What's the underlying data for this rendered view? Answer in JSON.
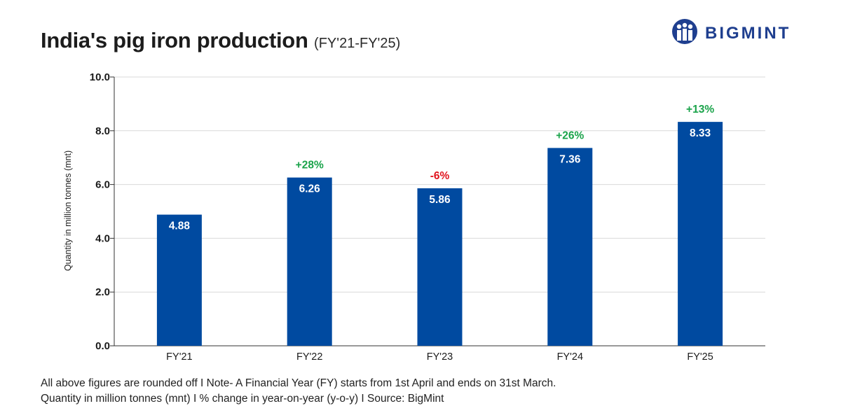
{
  "header": {
    "title": "India's pig iron production",
    "subtitle": "(FY'21-FY'25)"
  },
  "logo": {
    "text": "BIGMINT",
    "icon": "bigmint-logo-icon",
    "color": "#1f3f8f"
  },
  "chart_data": {
    "type": "bar",
    "categories": [
      "FY'21",
      "FY'22",
      "FY'23",
      "FY'24",
      "FY'25"
    ],
    "values": [
      4.88,
      6.26,
      5.86,
      7.36,
      8.33
    ],
    "value_labels": [
      "4.88",
      "6.26",
      "5.86",
      "7.36",
      "8.33"
    ],
    "changes": [
      "",
      "+28%",
      "-6%",
      "+26%",
      "+13%"
    ],
    "title": "India's pig iron production",
    "xlabel": "",
    "ylabel": "Quantity in million tonnes (mnt)",
    "ylim": [
      0,
      10
    ],
    "yticks": [
      "0.0",
      "2.0",
      "4.0",
      "6.0",
      "8.0",
      "10.0"
    ],
    "grid": true,
    "colors": {
      "bar": "#004aa0",
      "positive": "#1aa34a",
      "negative": "#e0141e",
      "grid": "#d9d9d9"
    }
  },
  "footnote": {
    "line1": "All above figures are rounded off  I  Note- A Financial Year (FY) starts from 1st April and ends on 31st March.",
    "line2": "Quantity in million tonnes (mnt)  I  % change in year-on-year (y-o-y)  I  Source: BigMint"
  }
}
